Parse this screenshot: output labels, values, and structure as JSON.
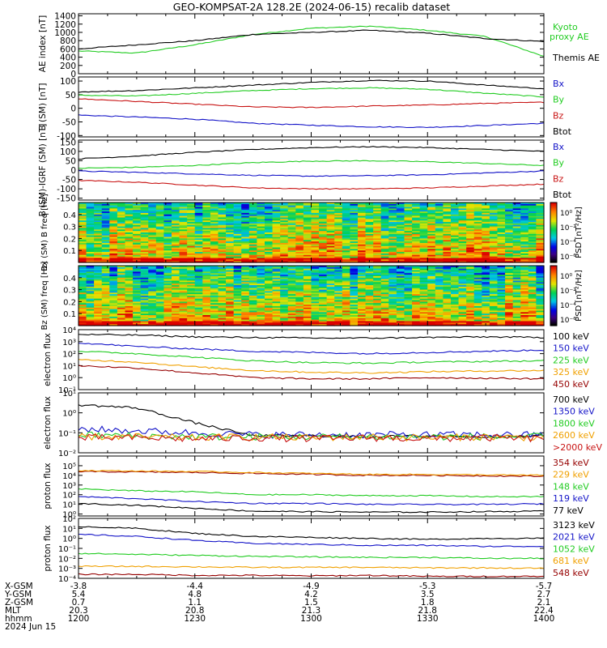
{
  "title": "GEO-KOMPSAT-2A 128.2E (2024-06-15) recalib dataset",
  "ephemeris": {
    "labels": [
      "X-GSM",
      "Y-GSM",
      "Z-GSM",
      "MLT",
      "hhmm",
      "2024 Jun 15"
    ],
    "columns": [
      [
        "-3.8",
        "5.4",
        "0.7",
        "20.3",
        "1200"
      ],
      [
        "-4.4",
        "4.8",
        "1.1",
        "20.8",
        "1230"
      ],
      [
        "-4.9",
        "4.2",
        "1.5",
        "21.3",
        "1300"
      ],
      [
        "-5.3",
        "3.5",
        "1.8",
        "21.8",
        "1330"
      ],
      [
        "-5.7",
        "2.7",
        "2.1",
        "22.4",
        "1400"
      ]
    ]
  },
  "colors": {
    "black": "#000000",
    "green": "#22cc22",
    "blue": "#1414c8",
    "red": "#c81414",
    "orange": "#f0a000",
    "darkred": "#960000"
  },
  "chart_data": [
    {
      "type": "line",
      "ylabel": "AE index [nT]",
      "ylim": [
        0,
        1450
      ],
      "yticks": [
        "0",
        "200",
        "400",
        "600",
        "800",
        "1000",
        "1200",
        "1400"
      ],
      "legend": [
        "Kyoto proxy AE",
        "Themis AE"
      ],
      "x": [
        12.0,
        12.25,
        12.5,
        12.75,
        13.0,
        13.25,
        13.5,
        13.75,
        14.0
      ],
      "series": [
        {
          "name": "Kyoto proxy AE",
          "color": "#22cc22",
          "values": [
            550,
            500,
            700,
            950,
            1100,
            1150,
            1050,
            900,
            420
          ]
        },
        {
          "name": "Themis AE",
          "color": "#000000",
          "values": [
            600,
            700,
            800,
            950,
            1000,
            1050,
            980,
            850,
            780
          ]
        }
      ]
    },
    {
      "type": "line",
      "ylabel": "B (SM) [nT]",
      "ylim": [
        -105,
        115
      ],
      "yticks": [
        "100",
        "50",
        "0",
        "-50",
        "-100"
      ],
      "legend": [
        "Bx",
        "By",
        "Bz",
        "Btot"
      ],
      "series": [
        {
          "name": "Bx",
          "color": "#1414c8",
          "values": [
            -25,
            -32,
            -40,
            -55,
            -62,
            -68,
            -70,
            -63,
            -55
          ]
        },
        {
          "name": "By",
          "color": "#22cc22",
          "values": [
            48,
            45,
            55,
            65,
            72,
            75,
            70,
            55,
            42
          ]
        },
        {
          "name": "Bz",
          "color": "#c81414",
          "values": [
            35,
            25,
            15,
            5,
            3,
            8,
            12,
            18,
            22
          ]
        },
        {
          "name": "Btot",
          "color": "#000000",
          "values": [
            60,
            65,
            75,
            85,
            95,
            102,
            100,
            85,
            72
          ]
        }
      ]
    },
    {
      "type": "line",
      "ylabel": "B (SM)-IGRF (SM) [nT]",
      "ylim": [
        -160,
        160
      ],
      "yticks": [
        "150",
        "100",
        "50",
        "0",
        "-50",
        "-100",
        "-150"
      ],
      "legend": [
        "Bx",
        "By",
        "Bz",
        "Btot"
      ],
      "series": [
        {
          "name": "Bx",
          "color": "#1414c8",
          "values": [
            -5,
            -12,
            -20,
            -28,
            -32,
            -30,
            -25,
            -15,
            -5
          ]
        },
        {
          "name": "By",
          "color": "#22cc22",
          "values": [
            10,
            15,
            25,
            40,
            48,
            50,
            45,
            35,
            25
          ]
        },
        {
          "name": "Bz",
          "color": "#c81414",
          "values": [
            -55,
            -65,
            -80,
            -95,
            -100,
            -100,
            -95,
            -85,
            -75
          ]
        },
        {
          "name": "Btot",
          "color": "#000000",
          "values": [
            60,
            75,
            95,
            110,
            120,
            125,
            120,
            110,
            100
          ]
        }
      ]
    },
    {
      "type": "heatmap",
      "ylabel": "Bx (SM) B freq [Hz]",
      "ylim": [
        0,
        0.5
      ],
      "yticks": [
        "0.1",
        "0.2",
        "0.3",
        "0.4"
      ],
      "colorbar_label": "PSD [nT²/Hz]",
      "colorbar_ticks": [
        "10⁰",
        "10⁻²",
        "10⁻⁴",
        "10⁻⁶"
      ]
    },
    {
      "type": "heatmap",
      "ylabel": "Bz (SM) freq [Hz]",
      "ylim": [
        0,
        0.5
      ],
      "yticks": [
        "0.1",
        "0.2",
        "0.3",
        "0.4"
      ],
      "colorbar_label": "PSD [nT²/Hz]",
      "colorbar_ticks": [
        "10⁰",
        "10⁻²",
        "10⁻⁴",
        "10⁻⁶"
      ]
    },
    {
      "type": "line",
      "log": true,
      "ylabel": "electron flux",
      "ylim_exp": [
        -1,
        4
      ],
      "yticks": [
        "10⁻¹",
        "10⁰",
        "10¹",
        "10²",
        "10³",
        "10⁴"
      ],
      "legend": [
        "100 keV",
        "150 keV",
        "225 keV",
        "325 keV",
        "450 keV"
      ],
      "series": [
        {
          "name": "100 keV",
          "color": "#000000",
          "log10_values": [
            3.6,
            3.55,
            3.4,
            3.35,
            3.3,
            3.3,
            3.35,
            3.4,
            3.35
          ]
        },
        {
          "name": "150 keV",
          "color": "#1414c8",
          "log10_values": [
            2.9,
            2.6,
            2.4,
            2.2,
            2.1,
            2.0,
            2.1,
            2.2,
            2.3
          ]
        },
        {
          "name": "225 keV",
          "color": "#22cc22",
          "log10_values": [
            2.2,
            2.0,
            1.7,
            1.4,
            1.25,
            1.2,
            1.3,
            1.35,
            1.4
          ]
        },
        {
          "name": "325 keV",
          "color": "#f0a000",
          "log10_values": [
            1.5,
            1.3,
            0.9,
            0.6,
            0.45,
            0.4,
            0.5,
            0.55,
            0.6
          ]
        },
        {
          "name": "450 keV",
          "color": "#960000",
          "log10_values": [
            1.0,
            0.8,
            0.4,
            0.0,
            -0.1,
            -0.1,
            0.0,
            -0.05,
            -0.1
          ]
        }
      ]
    },
    {
      "type": "line",
      "log": true,
      "ylabel": "electron flux",
      "ylim_exp": [
        -2,
        1
      ],
      "yticks": [
        "10⁻²",
        "10⁻¹",
        "10⁰",
        "10¹"
      ],
      "legend": [
        "700 keV",
        "1350 keV",
        "1800 keV",
        "2600 keV",
        ">2000 keV"
      ],
      "series": [
        {
          "name": "700 keV",
          "color": "#000000",
          "log10_values": [
            0.4,
            0.25,
            -0.5,
            -1.15,
            -1.15,
            -1.2,
            -1.15,
            -1.2,
            -1.15
          ]
        },
        {
          "name": "1350 keV",
          "color": "#1414c8",
          "log10_values": [
            -0.8,
            -0.9,
            -1.0,
            -1.1,
            -1.1,
            -1.1,
            -1.1,
            -1.1,
            -1.1
          ]
        },
        {
          "name": "1800 keV",
          "color": "#22cc22",
          "log10_values": [
            -1.1,
            -1.15,
            -1.2,
            -1.2,
            -1.2,
            -1.2,
            -1.2,
            -1.2,
            -1.2
          ]
        },
        {
          "name": "2600 keV",
          "color": "#f0a000",
          "log10_values": [
            -1.2,
            -1.2,
            -1.25,
            -1.2,
            -1.25,
            -1.2,
            -1.25,
            -1.2,
            -1.25
          ]
        },
        {
          "name": ">2000 keV",
          "color": "#c81414",
          "log10_values": [
            -1.25,
            -1.25,
            -1.3,
            -1.25,
            -1.3,
            -1.25,
            -1.3,
            -1.25,
            -1.3
          ]
        }
      ]
    },
    {
      "type": "line",
      "log": true,
      "ylabel": "proton flux",
      "ylim_exp": [
        -0.2,
        6
      ],
      "yticks": [
        "10⁰",
        "10¹",
        "10²",
        "10³",
        "10⁴",
        "10⁵"
      ],
      "legend": [
        "354 keV",
        "229 keV",
        "148 keV",
        "119 keV",
        "77 keV"
      ],
      "series": [
        {
          "name": "354 keV",
          "color": "#960000",
          "log10_values": [
            4.4,
            4.35,
            4.3,
            4.2,
            4.1,
            4.0,
            4.0,
            3.95,
            3.9
          ]
        },
        {
          "name": "229 keV",
          "color": "#f0a000",
          "log10_values": [
            4.5,
            4.45,
            4.4,
            4.3,
            4.2,
            4.1,
            4.1,
            4.05,
            4.0
          ]
        },
        {
          "name": "148 keV",
          "color": "#22cc22",
          "log10_values": [
            2.6,
            2.4,
            2.3,
            2.0,
            2.0,
            1.9,
            1.9,
            1.8,
            1.8
          ]
        },
        {
          "name": "119 keV",
          "color": "#1414c8",
          "log10_values": [
            1.8,
            1.6,
            1.3,
            1.1,
            1.1,
            1.0,
            1.0,
            1.0,
            1.05
          ]
        },
        {
          "name": "77 keV",
          "color": "#000000",
          "log10_values": [
            1.1,
            0.9,
            0.6,
            0.3,
            0.25,
            0.2,
            0.2,
            0.25,
            0.3
          ]
        }
      ]
    },
    {
      "type": "line",
      "log": true,
      "ylabel": "proton flux",
      "ylim_exp": [
        -4,
        2
      ],
      "yticks": [
        "10⁻⁴",
        "10⁻³",
        "10⁻²",
        "10⁻¹",
        "10⁰",
        "10¹",
        "10²"
      ],
      "legend": [
        "3123 keV",
        "2021 keV",
        "1052 keV",
        "681 keV",
        "548 keV"
      ],
      "series": [
        {
          "name": "3123 keV",
          "color": "#000000",
          "log10_values": [
            1.2,
            1.0,
            0.5,
            0.2,
            0.1,
            0.0,
            -0.1,
            0.0,
            0.0
          ]
        },
        {
          "name": "2021 keV",
          "color": "#1414c8",
          "log10_values": [
            0.4,
            0.2,
            -0.2,
            -0.5,
            -0.6,
            -0.7,
            -0.7,
            -0.8,
            -0.8
          ]
        },
        {
          "name": "1052 keV",
          "color": "#22cc22",
          "log10_values": [
            -1.5,
            -1.6,
            -1.7,
            -1.8,
            -1.85,
            -1.9,
            -1.9,
            -2.0,
            -2.0
          ]
        },
        {
          "name": "681 keV",
          "color": "#f0a000",
          "log10_values": [
            -2.8,
            -2.8,
            -2.85,
            -2.9,
            -2.9,
            -2.9,
            -2.95,
            -2.95,
            -3.0
          ]
        },
        {
          "name": "548 keV",
          "color": "#960000",
          "log10_values": [
            -3.6,
            -3.6,
            -3.7,
            -3.7,
            -3.75,
            -3.7,
            -3.8,
            -3.8,
            -3.8
          ]
        }
      ]
    }
  ]
}
